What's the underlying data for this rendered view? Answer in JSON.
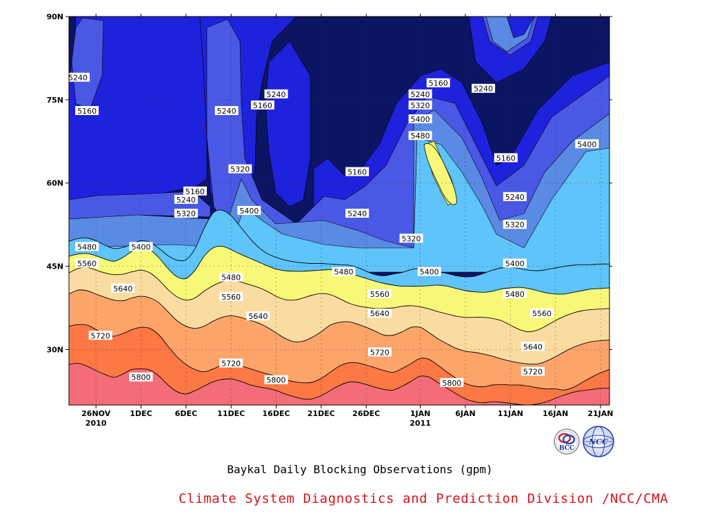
{
  "chart_data": {
    "type": "heatmap",
    "subtype": "filled-contour time-latitude section",
    "title": "Baykal Daily Blocking Observations (gpm)",
    "xlabel": "",
    "ylabel": "",
    "x_ticks": [
      {
        "day": 0,
        "label": "26NOV",
        "sub": "2010"
      },
      {
        "day": 5,
        "label": "1DEC",
        "sub": ""
      },
      {
        "day": 10,
        "label": "6DEC",
        "sub": ""
      },
      {
        "day": 15,
        "label": "11DEC",
        "sub": ""
      },
      {
        "day": 20,
        "label": "16DEC",
        "sub": ""
      },
      {
        "day": 25,
        "label": "21DEC",
        "sub": ""
      },
      {
        "day": 30,
        "label": "26DEC",
        "sub": ""
      },
      {
        "day": 36,
        "label": "1JAN",
        "sub": "2011"
      },
      {
        "day": 41,
        "label": "6JAN",
        "sub": ""
      },
      {
        "day": 46,
        "label": "11JAN",
        "sub": ""
      },
      {
        "day": 51,
        "label": "16JAN",
        "sub": ""
      },
      {
        "day": 56,
        "label": "21JAN",
        "sub": ""
      }
    ],
    "y_ticks": [
      {
        "lat": 30,
        "label": "30N"
      },
      {
        "lat": 45,
        "label": "45N"
      },
      {
        "lat": 60,
        "label": "60N"
      },
      {
        "lat": 75,
        "label": "75N"
      },
      {
        "lat": 90,
        "label": "90N"
      }
    ],
    "xlim_days": [
      -3,
      57
    ],
    "ylim_lat": [
      20,
      90
    ],
    "grid": true,
    "contour_levels": [
      5160,
      5240,
      5320,
      5400,
      5480,
      5560,
      5640,
      5720,
      5800
    ],
    "level_colors": [
      "#0c1464",
      "#1e22dc",
      "#4a58e6",
      "#5a8ae4",
      "#5ec4fa",
      "#f8f878",
      "#fbdca0",
      "#fca46a",
      "#fc7844",
      "#f46c78"
    ],
    "isolines": [
      {
        "level": 5800,
        "lat": [
          27.3,
          27.5,
          27.0,
          26.2,
          25.5,
          25.0,
          25.6,
          26.4,
          26.5,
          26.3,
          25.2,
          23.6,
          22.4,
          22.0,
          22.6,
          23.4,
          24.2,
          24.6,
          24.7,
          24.3,
          23.7,
          23.3,
          23.0,
          22.6,
          22.0,
          21.5,
          21.1,
          21.1,
          21.7,
          22.6,
          23.5,
          24.1,
          24.1,
          23.7,
          23.2,
          22.8,
          22.7,
          23.4,
          24.3,
          25.2,
          25.0,
          24.0,
          23.0,
          22.0,
          21.1,
          20.6,
          20.4,
          20.6,
          20.5,
          20.3,
          20.1,
          20.0,
          20.2,
          20.6,
          21.2,
          21.8,
          22.3,
          22.6,
          22.8,
          23.0,
          23.0
        ]
      },
      {
        "level": 5720,
        "lat": [
          34.2,
          34.5,
          34.4,
          33.6,
          32.8,
          32.4,
          32.9,
          33.6,
          34.0,
          33.8,
          32.6,
          30.6,
          28.7,
          27.3,
          26.4,
          26.0,
          26.5,
          27.2,
          27.4,
          27.1,
          26.6,
          26.1,
          25.6,
          25.2,
          24.6,
          24.2,
          24.0,
          24.1,
          24.8,
          25.9,
          27.0,
          27.6,
          27.6,
          27.2,
          26.7,
          26.2,
          25.9,
          26.6,
          27.5,
          28.4,
          28.2,
          27.1,
          25.9,
          24.8,
          23.9,
          23.4,
          23.3,
          23.6,
          23.7,
          23.6,
          23.6,
          23.4,
          23.1,
          22.9,
          22.9,
          22.7,
          23.2,
          24.1,
          25.0,
          25.8,
          26.4
        ]
      },
      {
        "level": 5640,
        "lat": [
          40.0,
          40.7,
          40.6,
          40.0,
          39.4,
          38.9,
          38.8,
          39.3,
          39.6,
          39.3,
          38.4,
          36.8,
          35.2,
          34.2,
          33.8,
          34.2,
          35.1,
          35.8,
          36.1,
          35.8,
          35.3,
          34.8,
          34.0,
          33.0,
          32.0,
          31.4,
          31.5,
          32.2,
          33.2,
          34.4,
          34.9,
          35.0,
          34.6,
          34.0,
          33.3,
          32.6,
          32.6,
          33.2,
          34.0,
          34.0,
          33.0,
          31.9,
          31.0,
          30.2,
          29.7,
          29.5,
          29.2,
          28.8,
          28.3,
          27.9,
          27.6,
          27.4,
          27.4,
          27.9,
          28.7,
          29.6,
          30.4,
          31.0,
          31.4,
          31.6,
          31.7
        ]
      },
      {
        "level": 5560,
        "lat": [
          43.8,
          44.6,
          44.8,
          44.3,
          43.8,
          43.5,
          43.6,
          44.0,
          44.3,
          43.8,
          42.5,
          40.8,
          39.5,
          38.9,
          39.3,
          40.5,
          41.5,
          42.2,
          42.5,
          42.2,
          41.7,
          41.2,
          40.5,
          39.6,
          39.0,
          38.9,
          39.3,
          39.8,
          40.1,
          39.9,
          39.2,
          38.4,
          37.9,
          37.6,
          37.4,
          37.4,
          37.5,
          37.8,
          37.9,
          37.7,
          37.3,
          36.8,
          36.4,
          36.0,
          35.8,
          35.8,
          35.8,
          35.6,
          35.2,
          34.4,
          33.6,
          33.2,
          33.5,
          34.3,
          35.2,
          36.0,
          36.6,
          37.0,
          37.2,
          37.3,
          37.4
        ]
      },
      {
        "level": 5480,
        "lat": [
          46.8,
          47.2,
          47.3,
          46.9,
          46.3,
          45.9,
          46.6,
          47.7,
          48.6,
          48.0,
          46.5,
          44.6,
          43.1,
          42.8,
          44.3,
          46.8,
          48.3,
          48.6,
          48.0,
          47.2,
          46.5,
          45.8,
          45.1,
          44.5,
          44.2,
          44.1,
          44.1,
          44.2,
          44.3,
          44.4,
          44.2,
          43.8,
          43.3,
          42.8,
          42.3,
          41.9,
          41.6,
          41.4,
          41.4,
          41.4,
          41.5,
          41.6,
          41.4,
          41.0,
          40.6,
          40.4,
          40.3,
          40.5,
          40.9,
          41.1,
          41.2,
          41.0,
          40.6,
          40.2,
          40.0,
          40.0,
          40.3,
          40.6,
          40.9,
          41.0,
          41.1
        ]
      },
      {
        "level": 5400,
        "lat": [
          49.5,
          50.0,
          50.1,
          49.6,
          48.8,
          48.2,
          48.4,
          49.0,
          49.6,
          49.3,
          48.2,
          46.9,
          46.1,
          46.2,
          48.2,
          51.8,
          54.6,
          55.1,
          54.1,
          52.2,
          50.2,
          48.5,
          47.3,
          46.6,
          46.1,
          45.8,
          45.6,
          45.5,
          45.5,
          45.4,
          45.3,
          45.2,
          44.8,
          44.1,
          43.5,
          43.3,
          43.6,
          43.9,
          44.4,
          44.6,
          44.4,
          44.0,
          43.7,
          43.3,
          43.1,
          43.2,
          43.7,
          44.3,
          44.7,
          44.8,
          44.6,
          44.3,
          44.2,
          44.4,
          44.7,
          45.0,
          45.2,
          45.3,
          45.3,
          45.4,
          45.4
        ]
      }
    ],
    "contour_labels": [
      {
        "text": "5240",
        "day": -2,
        "lat": 79
      },
      {
        "text": "5160",
        "day": -1,
        "lat": 73
      },
      {
        "text": "5480",
        "day": -1,
        "lat": 48.5
      },
      {
        "text": "5560",
        "day": -1,
        "lat": 45.5
      },
      {
        "text": "5640",
        "day": 3,
        "lat": 41
      },
      {
        "text": "5720",
        "day": 0.5,
        "lat": 32.5
      },
      {
        "text": "5800",
        "day": 5,
        "lat": 25
      },
      {
        "text": "5400",
        "day": 5,
        "lat": 48.5
      },
      {
        "text": "5160",
        "day": 11,
        "lat": 58.5
      },
      {
        "text": "5240",
        "day": 10,
        "lat": 57
      },
      {
        "text": "5320",
        "day": 10,
        "lat": 54.5
      },
      {
        "text": "5240",
        "day": 14.5,
        "lat": 73
      },
      {
        "text": "5160",
        "day": 18.5,
        "lat": 74
      },
      {
        "text": "5240",
        "day": 20,
        "lat": 76
      },
      {
        "text": "5320",
        "day": 16,
        "lat": 62.5
      },
      {
        "text": "5400",
        "day": 17,
        "lat": 55
      },
      {
        "text": "5480",
        "day": 15,
        "lat": 43
      },
      {
        "text": "5560",
        "day": 15,
        "lat": 39.5
      },
      {
        "text": "5640",
        "day": 18,
        "lat": 36
      },
      {
        "text": "5720",
        "day": 15,
        "lat": 27.5
      },
      {
        "text": "5800",
        "day": 20,
        "lat": 24.5
      },
      {
        "text": "5160",
        "day": 29,
        "lat": 62
      },
      {
        "text": "5240",
        "day": 29,
        "lat": 54.5
      },
      {
        "text": "5480",
        "day": 27.5,
        "lat": 44
      },
      {
        "text": "5560",
        "day": 31.5,
        "lat": 40
      },
      {
        "text": "5640",
        "day": 31.5,
        "lat": 36.5
      },
      {
        "text": "5720",
        "day": 31.5,
        "lat": 29.5
      },
      {
        "text": "5160",
        "day": 38,
        "lat": 78
      },
      {
        "text": "5240",
        "day": 36,
        "lat": 76
      },
      {
        "text": "5320",
        "day": 36,
        "lat": 74
      },
      {
        "text": "5400",
        "day": 36,
        "lat": 71.5
      },
      {
        "text": "5480",
        "day": 36,
        "lat": 68.5
      },
      {
        "text": "5320",
        "day": 35,
        "lat": 50
      },
      {
        "text": "5400",
        "day": 37,
        "lat": 44
      },
      {
        "text": "5800",
        "day": 39.5,
        "lat": 24
      },
      {
        "text": "5240",
        "day": 43,
        "lat": 77
      },
      {
        "text": "5160",
        "day": 45.5,
        "lat": 64.5
      },
      {
        "text": "5240",
        "day": 46.5,
        "lat": 57.5
      },
      {
        "text": "5320",
        "day": 46.5,
        "lat": 52.5
      },
      {
        "text": "5400",
        "day": 46.5,
        "lat": 45.5
      },
      {
        "text": "5480",
        "day": 46.5,
        "lat": 40
      },
      {
        "text": "5560",
        "day": 49.5,
        "lat": 36.5
      },
      {
        "text": "5640",
        "day": 48.5,
        "lat": 30.5
      },
      {
        "text": "5720",
        "day": 48.5,
        "lat": 26
      },
      {
        "text": "5400",
        "day": 54.5,
        "lat": 67
      }
    ]
  },
  "footer": {
    "title": "Baykal Daily Blocking Observations (gpm)",
    "credit": "Climate System Diagnostics and Prediction Division /NCC/CMA",
    "logos": [
      {
        "name": "bcc-logo",
        "label": "BCC"
      },
      {
        "name": "ncc-logo",
        "label": "NCC"
      }
    ]
  }
}
